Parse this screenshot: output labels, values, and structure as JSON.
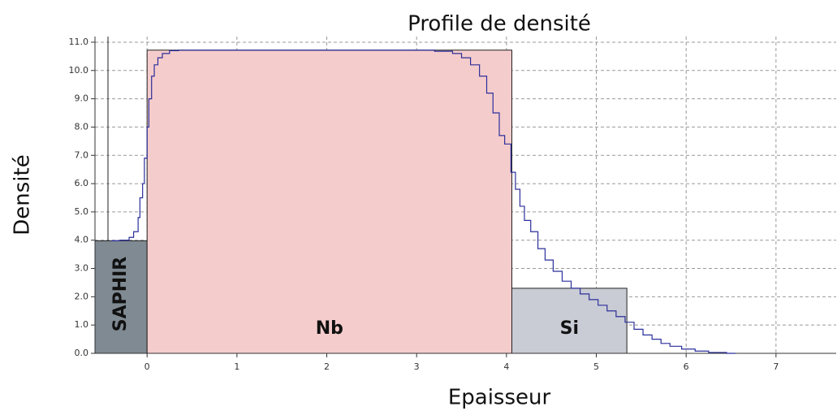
{
  "chart_data": {
    "type": "line",
    "step": true,
    "title": "Profile de densité",
    "x_label": "Epaisseur",
    "y_label": "Densité",
    "xlim": [
      -0.58,
      7.67
    ],
    "ylim": [
      0,
      11.2
    ],
    "xticks": [
      0,
      1,
      2,
      3,
      4,
      5,
      6,
      7
    ],
    "yticks": [
      {
        "value": 0,
        "label": "0.0"
      },
      {
        "value": 1,
        "label": "1.0"
      },
      {
        "value": 2,
        "label": "2.0"
      },
      {
        "value": 3,
        "label": "3.0"
      },
      {
        "value": 4,
        "label": "4.0"
      },
      {
        "value": 5,
        "label": "5.0"
      },
      {
        "value": 6,
        "label": "6.0"
      },
      {
        "value": 7,
        "label": "7.0"
      },
      {
        "value": 8,
        "label": "8.0"
      },
      {
        "value": 9,
        "label": "9.0"
      },
      {
        "value": 10,
        "label": "10.0"
      },
      {
        "value": 11,
        "label": "11.0"
      }
    ],
    "grid": true,
    "layers": [
      {
        "name": "SAPHIR",
        "x0": -0.58,
        "x1": 0,
        "density": 3.98,
        "color": "#7f8a93"
      },
      {
        "name": "Nb",
        "x0": 0,
        "x1": 4.06,
        "density": 10.72,
        "color": "#f5cccc"
      },
      {
        "name": "Si",
        "x0": 4.06,
        "x1": 5.34,
        "density": 2.3,
        "color": "#c9ccd4"
      }
    ],
    "series": [
      {
        "color": "#2b2f9a",
        "x": [
          -0.4,
          -0.3,
          -0.2,
          -0.15,
          -0.1,
          -0.08,
          -0.05,
          -0.03,
          0,
          0.02,
          0.05,
          0.08,
          0.12,
          0.17,
          0.25,
          0.35,
          3.0,
          3.2,
          3.4,
          3.5,
          3.6,
          3.7,
          3.78,
          3.85,
          3.92,
          3.98,
          4.05,
          4.1,
          4.15,
          4.2,
          4.27,
          4.35,
          4.43,
          4.52,
          4.62,
          4.72,
          4.82,
          4.92,
          5.02,
          5.12,
          5.22,
          5.32,
          5.42,
          5.52,
          5.62,
          5.72,
          5.82,
          5.95,
          6.1,
          6.25,
          6.45,
          6.55
        ],
        "values": [
          3.98,
          4.0,
          4.1,
          4.3,
          4.8,
          5.5,
          6.0,
          6.9,
          8.0,
          9.0,
          9.8,
          10.2,
          10.45,
          10.6,
          10.7,
          10.72,
          10.72,
          10.68,
          10.6,
          10.45,
          10.2,
          9.8,
          9.2,
          8.5,
          7.7,
          7.4,
          6.4,
          5.8,
          5.2,
          4.7,
          4.3,
          3.7,
          3.3,
          2.9,
          2.55,
          2.3,
          2.1,
          1.9,
          1.7,
          1.5,
          1.3,
          1.1,
          0.85,
          0.65,
          0.5,
          0.35,
          0.25,
          0.15,
          0.08,
          0.03,
          0.0,
          0.0
        ]
      }
    ]
  }
}
